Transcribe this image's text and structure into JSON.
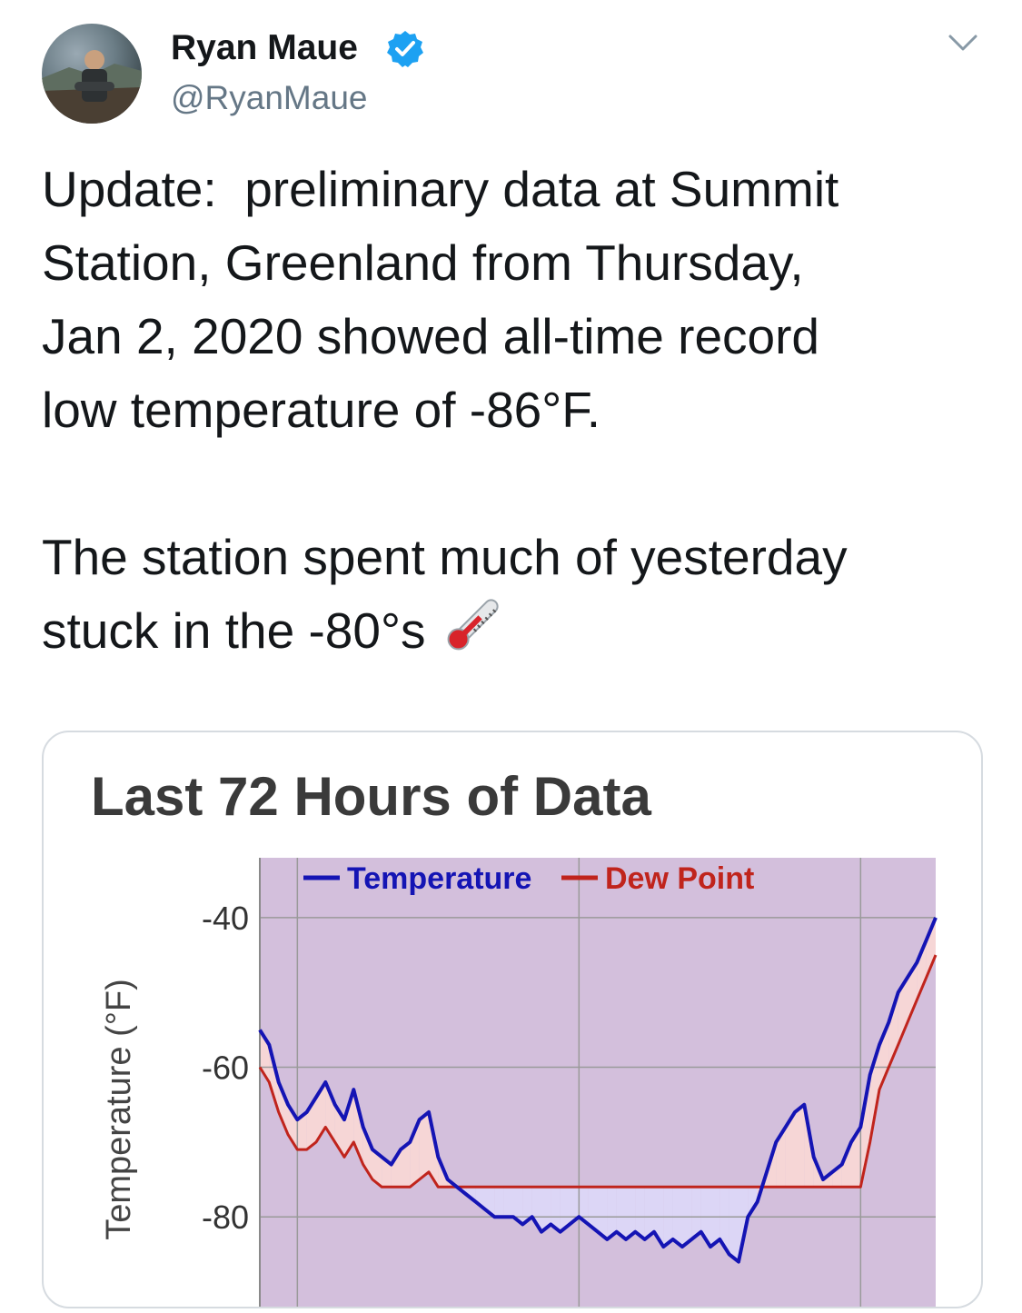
{
  "tweet": {
    "author": {
      "display_name": "Ryan Maue",
      "handle": "@RyanMaue",
      "verified": true
    },
    "text": "Update:  preliminary data at Summit\nStation, Greenland from Thursday,\nJan 2, 2020 showed all-time record\nlow temperature of -86°F.\n\nThe station spent much of yesterday\nstuck in the -80°s",
    "emoji": "thermometer-icon"
  },
  "chart_data": {
    "type": "line",
    "title": "Last 72 Hours of Data",
    "ylabel": "Temperature (°F)",
    "xlabel": "",
    "ylim": [
      -92,
      -32
    ],
    "yticks": [
      -40,
      -60,
      -80
    ],
    "legend": "top-center",
    "grid": true,
    "x_unit": "hours",
    "xlim": [
      0,
      72
    ],
    "colors": {
      "background": "#d3bfdc",
      "temperature": "#1414b4",
      "dew_point": "#c0241c",
      "fill_above": "#f6d6d6",
      "fill_below": "#dcd6f6"
    },
    "series": [
      {
        "name": "Temperature",
        "x": [
          0,
          1,
          2,
          3,
          4,
          5,
          6,
          7,
          8,
          9,
          10,
          11,
          12,
          13,
          14,
          15,
          16,
          17,
          18,
          19,
          20,
          21,
          22,
          23,
          24,
          25,
          26,
          27,
          28,
          29,
          30,
          31,
          32,
          33,
          34,
          35,
          36,
          37,
          38,
          39,
          40,
          41,
          42,
          43,
          44,
          45,
          46,
          47,
          48,
          49,
          50,
          51,
          52,
          53,
          54,
          55,
          56,
          57,
          58,
          59,
          60,
          61,
          62,
          63,
          64,
          65,
          66,
          67,
          68,
          69,
          70,
          71,
          72
        ],
        "values": [
          -55,
          -57,
          -62,
          -65,
          -67,
          -66,
          -64,
          -62,
          -65,
          -67,
          -63,
          -68,
          -71,
          -72,
          -73,
          -71,
          -70,
          -67,
          -66,
          -72,
          -75,
          -76,
          -77,
          -78,
          -79,
          -80,
          -80,
          -80,
          -81,
          -80,
          -82,
          -81,
          -82,
          -81,
          -80,
          -81,
          -82,
          -83,
          -82,
          -83,
          -82,
          -83,
          -82,
          -84,
          -83,
          -84,
          -83,
          -82,
          -84,
          -83,
          -85,
          -86,
          -80,
          -78,
          -74,
          -70,
          -68,
          -66,
          -65,
          -72,
          -75,
          -74,
          -73,
          -70,
          -68,
          -61,
          -57,
          -54,
          -50,
          -48,
          -46,
          -43,
          -40
        ]
      },
      {
        "name": "Dew Point",
        "x": [
          0,
          1,
          2,
          3,
          4,
          5,
          6,
          7,
          8,
          9,
          10,
          11,
          12,
          13,
          14,
          15,
          16,
          17,
          18,
          19,
          20,
          21,
          22,
          23,
          24,
          25,
          26,
          27,
          28,
          29,
          30,
          31,
          32,
          33,
          34,
          35,
          36,
          37,
          38,
          39,
          40,
          41,
          42,
          43,
          44,
          45,
          46,
          47,
          48,
          49,
          50,
          51,
          52,
          53,
          54,
          55,
          56,
          57,
          58,
          59,
          60,
          61,
          62,
          63,
          64,
          65,
          66,
          67,
          68,
          69,
          70,
          71,
          72
        ],
        "values": [
          -60,
          -62,
          -66,
          -69,
          -71,
          -71,
          -70,
          -68,
          -70,
          -72,
          -70,
          -73,
          -75,
          -76,
          -76,
          -76,
          -76,
          -75,
          -74,
          -76,
          -76,
          -76,
          -76,
          -76,
          -76,
          -76,
          -76,
          -76,
          -76,
          -76,
          -76,
          -76,
          -76,
          -76,
          -76,
          -76,
          -76,
          -76,
          -76,
          -76,
          -76,
          -76,
          -76,
          -76,
          -76,
          -76,
          -76,
          -76,
          -76,
          -76,
          -76,
          -76,
          -76,
          -76,
          -76,
          -76,
          -76,
          -76,
          -76,
          -76,
          -76,
          -76,
          -76,
          -76,
          -76,
          -70,
          -63,
          -60,
          -57,
          -54,
          -51,
          -48,
          -45
        ]
      }
    ]
  }
}
